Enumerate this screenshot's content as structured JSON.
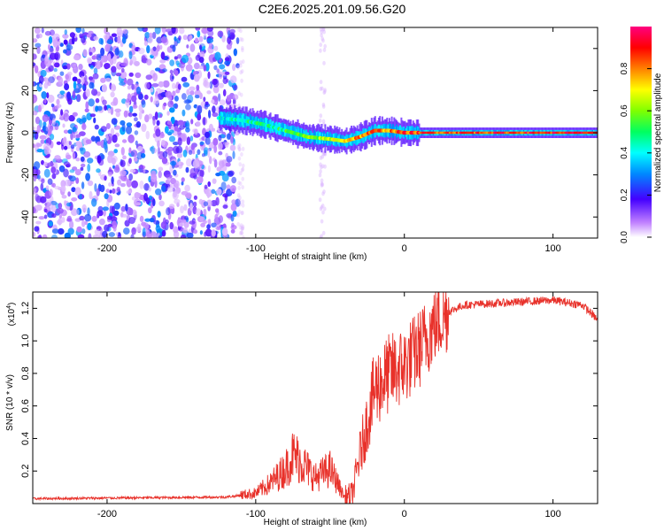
{
  "figure_title": "C2E6.2025.201.09.56.G20",
  "chart_data": [
    {
      "type": "heatmap",
      "title": "C2E6.2025.201.09.56.G20",
      "xlabel": "Height of straight line (km)",
      "ylabel": "Frequency (Hz)",
      "xlim": [
        -250,
        130
      ],
      "ylim": [
        -50,
        50
      ],
      "xticks": [
        -200,
        -100,
        0,
        100
      ],
      "yticks": [
        -40,
        -20,
        0,
        20,
        40
      ],
      "colorbar": {
        "label": "Normalized spectral amplitude",
        "range": [
          0,
          1
        ],
        "ticks": [
          0.0,
          0.2,
          0.4,
          0.6,
          0.8
        ],
        "colormap": [
          "#ffffff",
          "#c080ff",
          "#4400ff",
          "#0088ff",
          "#00ffff",
          "#00ff60",
          "#80ff00",
          "#ffff00",
          "#ff8000",
          "#ff0000",
          "#ff0080"
        ]
      },
      "ridge": {
        "description_points_km_hz": [
          [
            -125,
            7
          ],
          [
            -110,
            6
          ],
          [
            -95,
            4
          ],
          [
            -80,
            1
          ],
          [
            -65,
            -2
          ],
          [
            -50,
            -3
          ],
          [
            -40,
            -4
          ],
          [
            -30,
            -2
          ],
          [
            -20,
            1
          ],
          [
            -10,
            1
          ],
          [
            0,
            0
          ],
          [
            130,
            0
          ]
        ],
        "amplitude": [
          0.45,
          0.5,
          0.5,
          0.55,
          0.6,
          0.7,
          0.8,
          0.85,
          0.85,
          0.85,
          0.9,
          0.95
        ]
      },
      "noise_region_km": [
        -250,
        -112
      ]
    },
    {
      "type": "line",
      "xlabel": "Height of straight line (km)",
      "ylabel": "SNR (10 * v/v)",
      "y_multiplier": "(x10",
      "y_multiplier_exp": "4",
      "y_multiplier_close": ")",
      "xlim": [
        -250,
        130
      ],
      "ylim": [
        0,
        1.3
      ],
      "xticks": [
        -200,
        -100,
        0,
        100
      ],
      "yticks": [
        0.2,
        0.4,
        0.6,
        0.8,
        1.0,
        1.2
      ],
      "color": "#e8312a",
      "envelope_x": [
        -250,
        -120,
        -100,
        -90,
        -80,
        -75,
        -70,
        -60,
        -50,
        -45,
        -40,
        -35,
        -30,
        -25,
        -20,
        -15,
        -10,
        -5,
        0,
        10,
        20,
        30,
        40,
        60,
        80,
        100,
        120,
        130
      ],
      "envelope_y": [
        0.03,
        0.04,
        0.06,
        0.12,
        0.2,
        0.28,
        0.25,
        0.15,
        0.2,
        0.12,
        0.03,
        0.05,
        0.3,
        0.5,
        0.7,
        0.75,
        0.8,
        0.82,
        0.85,
        0.95,
        1.1,
        1.18,
        1.22,
        1.23,
        1.24,
        1.25,
        1.22,
        1.13
      ]
    }
  ]
}
